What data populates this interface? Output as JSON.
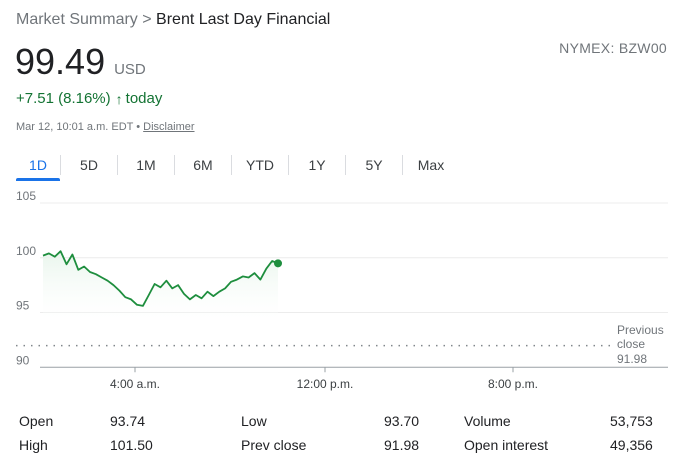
{
  "breadcrumb": {
    "parent": "Market Summary",
    "separator": ">",
    "current": "Brent Last Day Financial"
  },
  "ticker": "NYMEX: BZW00",
  "price": {
    "value": "99.49",
    "currency": "USD"
  },
  "change": {
    "text": "+7.51 (8.16%)",
    "period": "today",
    "color": "#137333"
  },
  "meta": {
    "timestamp": "Mar 12, 10:01 a.m. EDT",
    "bullet": "•",
    "disclaimer": "Disclaimer"
  },
  "tabs": [
    {
      "label": "1D",
      "active": true
    },
    {
      "label": "5D",
      "active": false
    },
    {
      "label": "1M",
      "active": false
    },
    {
      "label": "6M",
      "active": false
    },
    {
      "label": "YTD",
      "active": false
    },
    {
      "label": "1Y",
      "active": false
    },
    {
      "label": "5Y",
      "active": false
    },
    {
      "label": "Max",
      "active": false
    }
  ],
  "chart_data": {
    "type": "line",
    "ylim": [
      90,
      105
    ],
    "y_ticks": [
      105,
      100,
      95,
      90
    ],
    "x_ticks": [
      "4:00 a.m.",
      "12:00 p.m.",
      "8:00 p.m."
    ],
    "grid": true,
    "line_color": "#1e8e3e",
    "reference": {
      "label_lines": [
        "Previous",
        "close"
      ],
      "value": 91.98,
      "value_label": "91.98"
    },
    "x": [
      "12:00 a.m.",
      "12:15 a.m.",
      "12:30 a.m.",
      "12:45 a.m.",
      "1:00 a.m.",
      "1:15 a.m.",
      "1:30 a.m.",
      "1:45 a.m.",
      "2:00 a.m.",
      "2:15 a.m.",
      "2:30 a.m.",
      "2:45 a.m.",
      "3:00 a.m.",
      "3:15 a.m.",
      "3:30 a.m.",
      "3:45 a.m.",
      "4:00 a.m.",
      "4:15 a.m.",
      "4:30 a.m.",
      "4:45 a.m.",
      "5:00 a.m.",
      "5:15 a.m.",
      "5:30 a.m.",
      "5:45 a.m.",
      "6:00 a.m.",
      "6:15 a.m.",
      "6:30 a.m.",
      "6:45 a.m.",
      "7:00 a.m.",
      "7:15 a.m.",
      "7:30 a.m.",
      "7:45 a.m.",
      "8:00 a.m.",
      "8:15 a.m.",
      "8:30 a.m.",
      "8:45 a.m.",
      "9:00 a.m.",
      "9:15 a.m.",
      "9:30 a.m.",
      "9:45 a.m.",
      "10:00 a.m."
    ],
    "y": [
      100.2,
      100.4,
      100.1,
      100.6,
      99.4,
      100.3,
      98.9,
      99.2,
      98.7,
      98.5,
      98.2,
      97.9,
      97.5,
      97.0,
      96.4,
      96.2,
      95.7,
      95.6,
      96.6,
      97.6,
      97.3,
      97.9,
      97.2,
      97.5,
      96.7,
      96.2,
      96.6,
      96.3,
      96.9,
      96.5,
      96.9,
      97.2,
      97.8,
      98.0,
      98.3,
      98.2,
      98.6,
      98.0,
      99.0,
      99.7,
      99.49
    ]
  },
  "stats": [
    {
      "label": "Open",
      "value": "93.74"
    },
    {
      "label": "High",
      "value": "101.50"
    },
    {
      "label": "Low",
      "value": "93.70"
    },
    {
      "label": "Prev close",
      "value": "91.98"
    },
    {
      "label": "Volume",
      "value": "53,753"
    },
    {
      "label": "Open interest",
      "value": "49,356"
    }
  ]
}
